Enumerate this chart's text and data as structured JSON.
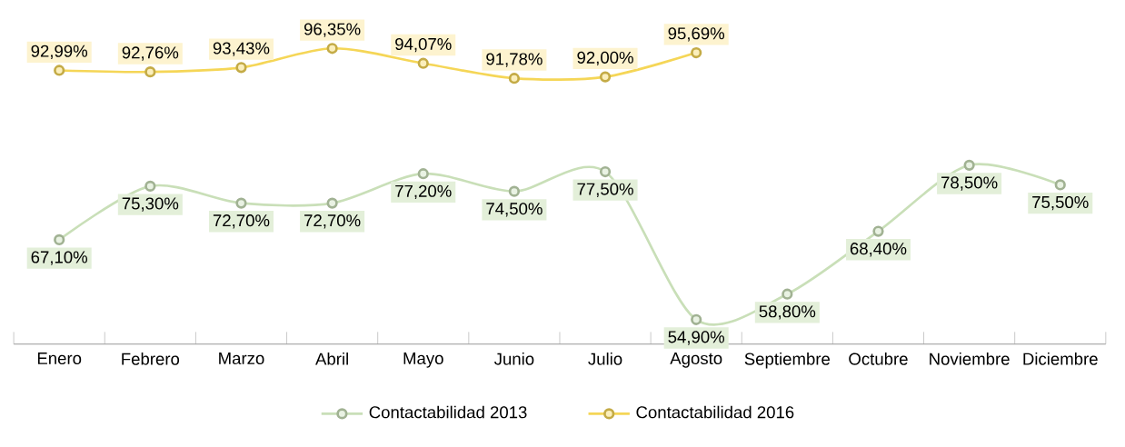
{
  "chart_data": {
    "type": "line",
    "categories": [
      "Enero",
      "Febrero",
      "Marzo",
      "Abril",
      "Mayo",
      "Junio",
      "Julio",
      "Agosto",
      "Septiembre",
      "Octubre",
      "Noviembre",
      "Diciembre"
    ],
    "series": [
      {
        "name": "Contactabilidad 2013",
        "color": "#c9dfb8",
        "values": [
          67.1,
          75.3,
          72.7,
          72.7,
          77.2,
          74.5,
          77.5,
          54.9,
          58.8,
          68.4,
          78.5,
          75.5
        ],
        "value_labels": [
          "67,10%",
          "75,30%",
          "72,70%",
          "72,70%",
          "77,20%",
          "74,50%",
          "77,50%",
          "54,90%",
          "58,80%",
          "68,40%",
          "78,50%",
          "75,50%"
        ]
      },
      {
        "name": "Contactabilidad 2016",
        "color": "#f5d657",
        "values": [
          92.99,
          92.76,
          93.43,
          96.35,
          94.07,
          91.78,
          92.0,
          95.69,
          null,
          null,
          null,
          null
        ],
        "value_labels": [
          "92,99%",
          "92,76%",
          "93,43%",
          "96,35%",
          "94,07%",
          "91,78%",
          "92,00%",
          "95,69%",
          null,
          null,
          null,
          null
        ]
      }
    ],
    "tick_labels": "x",
    "marker": "circle",
    "line_style": "solid",
    "legend": "bottom",
    "grid": false
  }
}
